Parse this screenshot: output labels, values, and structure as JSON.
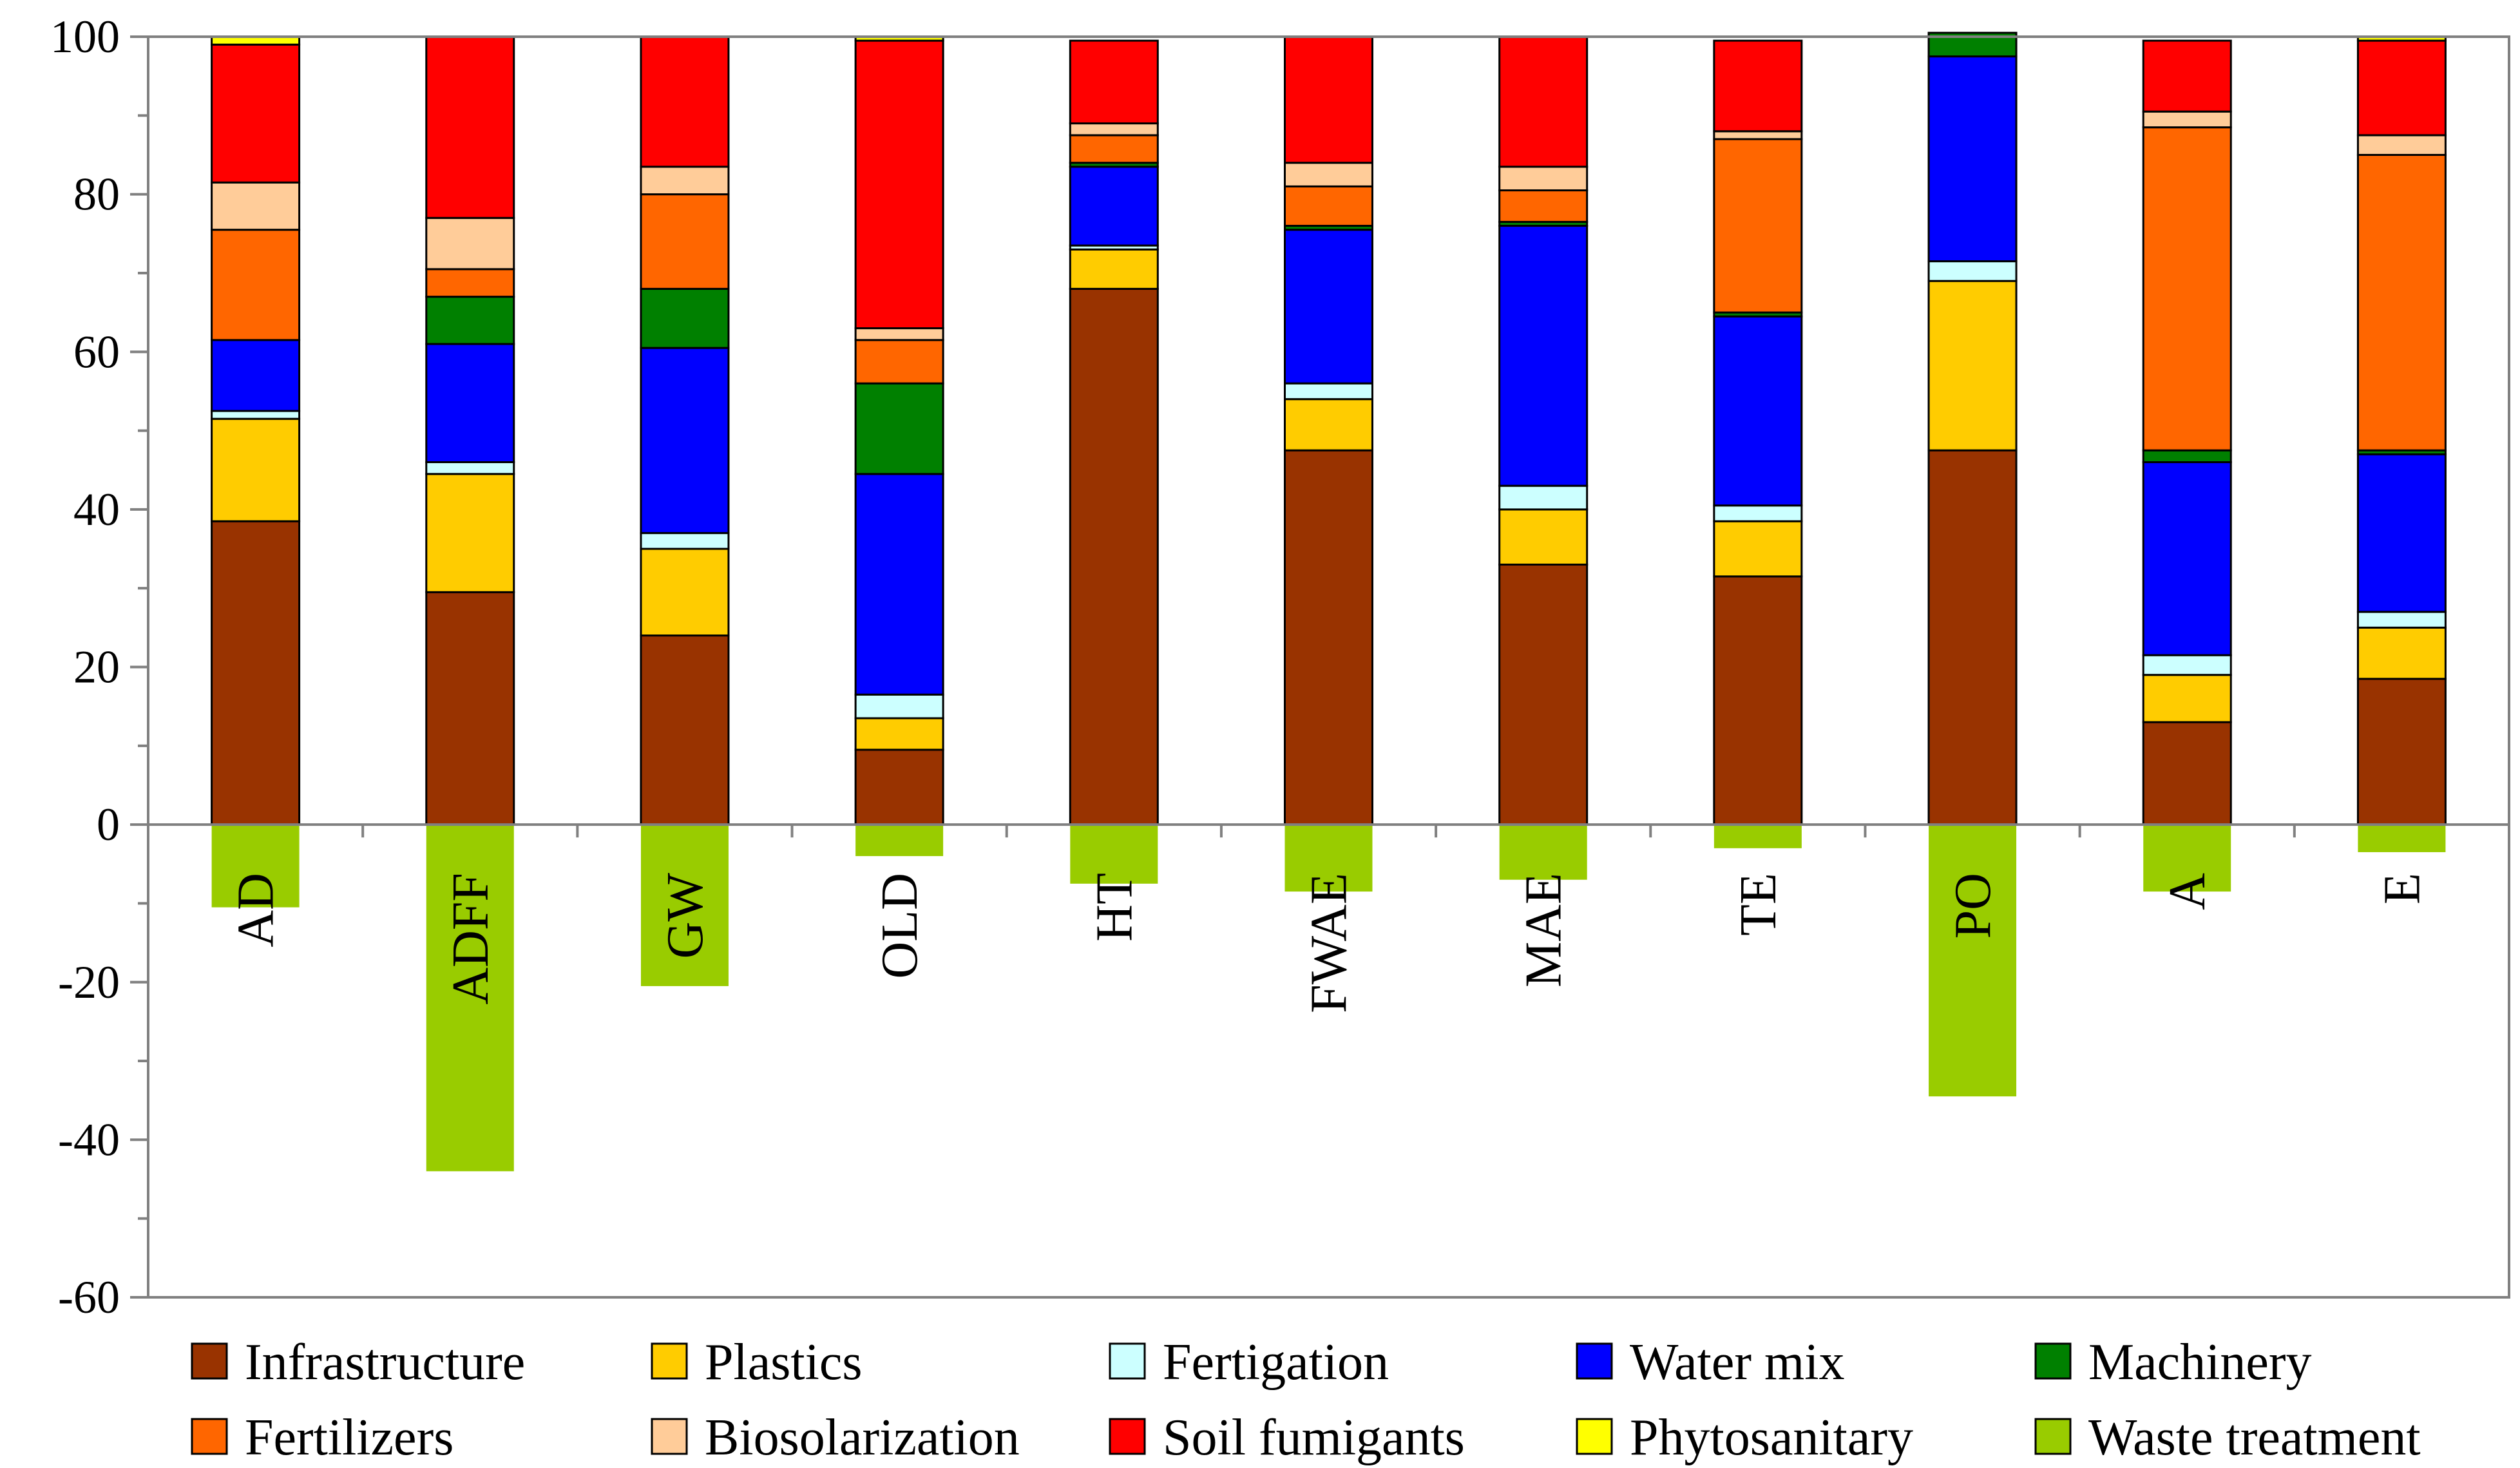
{
  "chart_data": {
    "type": "bar",
    "stacked": true,
    "title": "",
    "xlabel": "",
    "ylabel": "",
    "ylim": [
      -60,
      100
    ],
    "yticks": [
      -60,
      -40,
      -20,
      0,
      20,
      40,
      60,
      80,
      100
    ],
    "grid": false,
    "legend_position": "bottom",
    "categories": [
      "AD",
      "ADFF",
      "GW",
      "OLD",
      "HT",
      "FWAE",
      "MAE",
      "TE",
      "PO",
      "A",
      "E"
    ],
    "series": [
      {
        "name": "Infrastructure",
        "color": "#993300",
        "values": [
          38.5,
          29.5,
          24.0,
          9.5,
          68.0,
          47.5,
          33.0,
          31.5,
          47.5,
          13.0,
          18.5
        ]
      },
      {
        "name": "Plastics",
        "color": "#FFCC00",
        "values": [
          13.0,
          15.0,
          11.0,
          4.0,
          5.0,
          6.5,
          7.0,
          7.0,
          21.5,
          6.0,
          6.5
        ]
      },
      {
        "name": "Fertigation",
        "color": "#CCFFFF",
        "values": [
          1.0,
          1.5,
          2.0,
          3.0,
          0.5,
          2.0,
          3.0,
          2.0,
          2.5,
          2.5,
          2.0
        ]
      },
      {
        "name": "Water mix",
        "color": "#0000FF",
        "values": [
          9.0,
          15.0,
          23.5,
          28.0,
          10.0,
          19.5,
          33.0,
          24.0,
          26.0,
          24.5,
          20.0
        ]
      },
      {
        "name": "Machinery",
        "color": "#008000",
        "values": [
          0.0,
          6.0,
          7.5,
          11.5,
          0.5,
          0.5,
          0.5,
          0.5,
          3.0,
          1.5,
          0.5
        ]
      },
      {
        "name": "Fertilizers",
        "color": "#FF6600",
        "values": [
          14.0,
          3.5,
          12.0,
          5.5,
          3.5,
          5.0,
          4.0,
          22.0,
          0.0,
          41.0,
          37.5
        ]
      },
      {
        "name": "Biosolarization",
        "color": "#FFCC99",
        "values": [
          6.0,
          6.5,
          3.5,
          1.5,
          1.5,
          3.0,
          3.0,
          1.0,
          0.0,
          2.0,
          2.5
        ]
      },
      {
        "name": "Soil fumigants",
        "color": "#FF0000",
        "values": [
          17.5,
          23.0,
          16.5,
          36.5,
          10.5,
          16.0,
          16.5,
          11.5,
          0.0,
          9.0,
          12.0
        ]
      },
      {
        "name": "Phytosanitary",
        "color": "#FFFF00",
        "values": [
          1.0,
          0.0,
          0.0,
          0.5,
          0.0,
          0.0,
          0.0,
          0.0,
          0.0,
          0.0,
          0.5
        ]
      },
      {
        "name": "Waste treatment",
        "color": "#99CC00",
        "values": [
          -10.5,
          -44.0,
          -20.5,
          -4.0,
          -7.5,
          -8.5,
          -7.0,
          -3.0,
          -34.5,
          -8.5,
          -3.5
        ]
      }
    ]
  }
}
